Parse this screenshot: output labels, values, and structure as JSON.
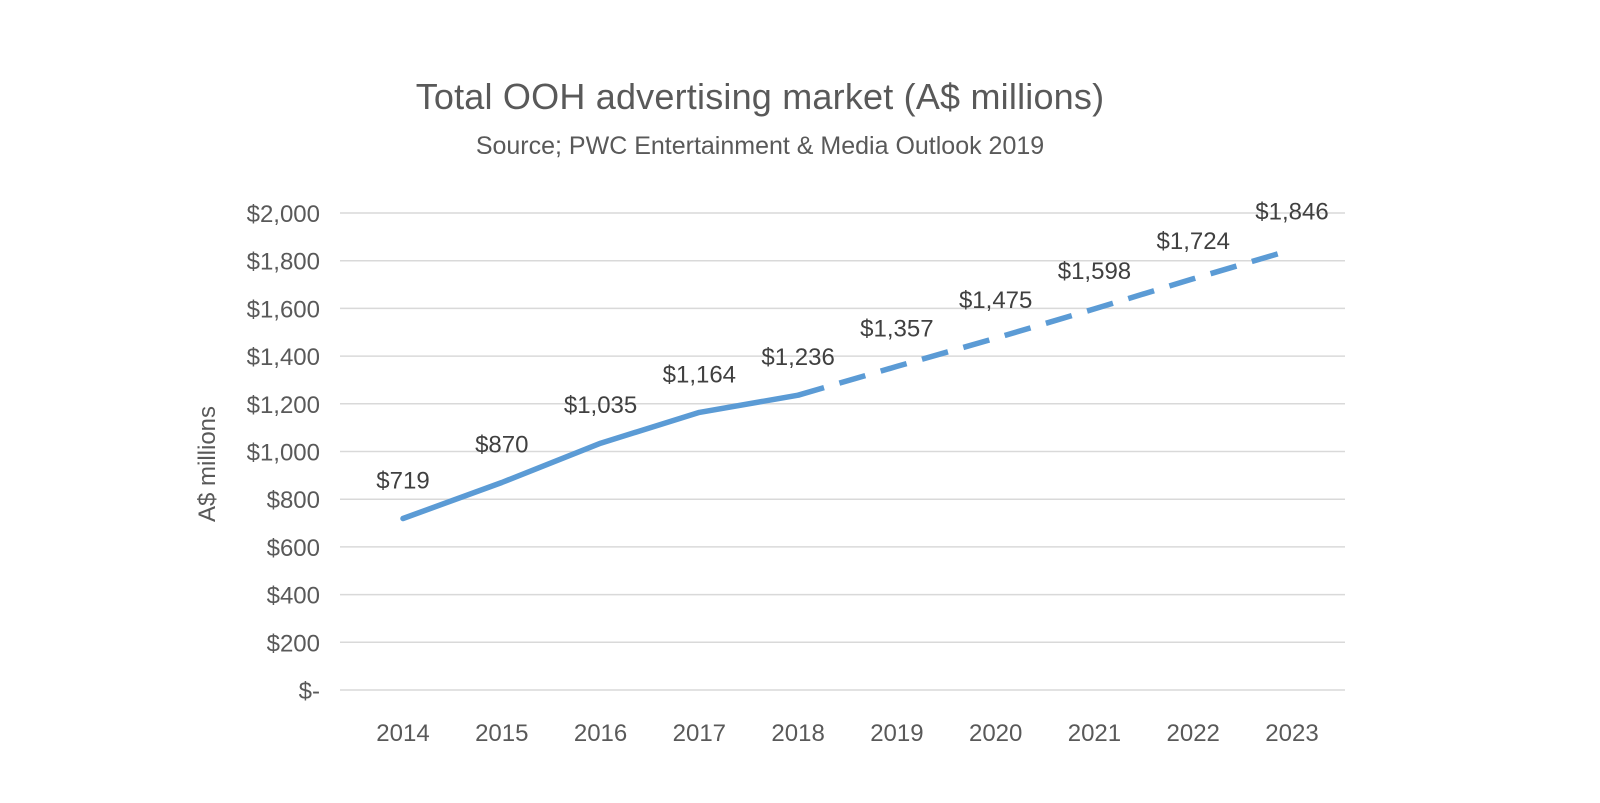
{
  "chart_data": {
    "type": "line",
    "title": "Total OOH advertising market (A$ millions)",
    "subtitle": "Source; PWC Entertainment & Media Outlook 2019",
    "ylabel": "A$ millions",
    "categories": [
      "2014",
      "2015",
      "2016",
      "2017",
      "2018",
      "2019",
      "2020",
      "2021",
      "2022",
      "2023"
    ],
    "series": [
      {
        "name": "Total OOH advertising market",
        "values": [
          719,
          870,
          1035,
          1164,
          1236,
          1357,
          1475,
          1598,
          1724,
          1846
        ],
        "style_note": "solid line through 2018, dashed (forecast) from 2018 to 2023"
      }
    ],
    "data_labels": [
      "$719",
      "$870",
      "$1,035",
      "$1,164",
      "$1,236",
      "$1,357",
      "$1,475",
      "$1,598",
      "$1,724",
      "$1,846"
    ],
    "solid_through_category": "2018",
    "solid_through_index": 4,
    "ylim": [
      0,
      2000
    ],
    "ytick_step": 200,
    "ytick_labels": [
      "$-",
      "$200",
      "$400",
      "$600",
      "$800",
      "$1,000",
      "$1,200",
      "$1,400",
      "$1,600",
      "$1,800",
      "$2,000"
    ],
    "line_color": "#5b9bd5",
    "grid": true,
    "legend": "none"
  }
}
